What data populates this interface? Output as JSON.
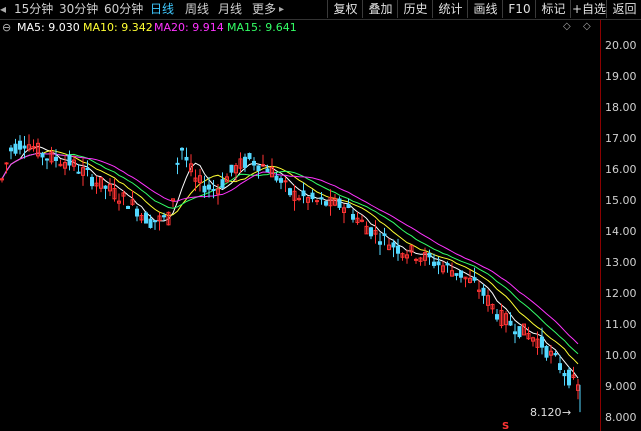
{
  "toolbar": {
    "left_arrow": "◂",
    "periods": [
      "15分钟",
      "30分钟",
      "60分钟",
      "日线",
      "周线",
      "月线",
      "更多"
    ],
    "more_arrow": "▸",
    "active_period": "日线",
    "buttons": [
      "复权",
      "叠加",
      "历史",
      "统计",
      "画线",
      "F10",
      "标记",
      "+自选",
      "返回"
    ]
  },
  "ma_bar": {
    "toggle_icon": "⊖",
    "ma5": "MA5: 9.030",
    "ma10": "MA10: 9.342",
    "ma20": "MA20: 9.914",
    "ma15": "MA15: 9.641",
    "colors": {
      "ma5": "#ffffff",
      "ma10": "#ffff33",
      "ma20": "#ff33ff",
      "ma15": "#33ff66"
    },
    "collapse_icon": "◇",
    "expand_icon": "◇"
  },
  "price_axis": {
    "labels": [
      "20.00",
      "19.00",
      "18.00",
      "17.00",
      "16.00",
      "15.00",
      "14.00",
      "13.00",
      "12.00",
      "11.00",
      "10.00",
      "9.000",
      "8.000"
    ]
  },
  "chart": {
    "low_label": "8.120",
    "low_arrow": "→",
    "marker": "S"
  },
  "colors": {
    "up": "#ff3333",
    "down": "#54d8ff",
    "axis": "#8b0000"
  }
}
